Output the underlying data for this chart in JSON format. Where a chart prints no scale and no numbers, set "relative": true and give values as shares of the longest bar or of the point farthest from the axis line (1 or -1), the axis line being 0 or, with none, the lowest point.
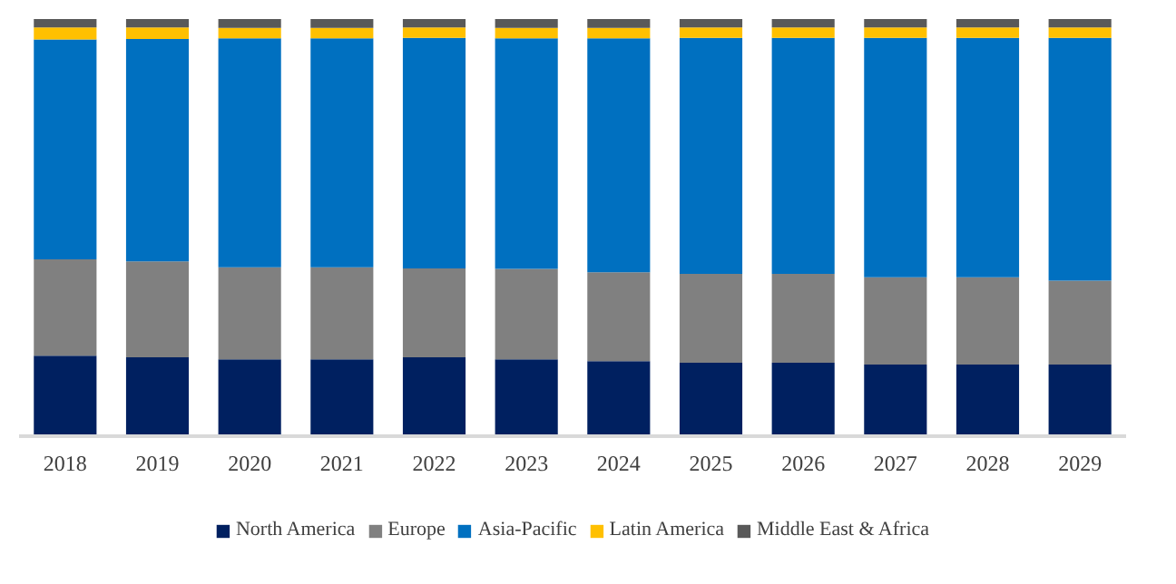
{
  "chart_data": {
    "type": "bar",
    "stacked": true,
    "relative": true,
    "legend": "bottom",
    "grid": false,
    "categories": [
      "2018",
      "2019",
      "2020",
      "2021",
      "2022",
      "2023",
      "2024",
      "2025",
      "2026",
      "2027",
      "2028",
      "2029"
    ],
    "series": [
      {
        "name": "North America",
        "color": "#002060",
        "values": [
          0.193,
          0.189,
          0.184,
          0.184,
          0.189,
          0.184,
          0.18,
          0.176,
          0.176,
          0.172,
          0.172,
          0.172
        ]
      },
      {
        "name": "Europe",
        "color": "#808080",
        "values": [
          0.231,
          0.23,
          0.221,
          0.221,
          0.213,
          0.217,
          0.213,
          0.213,
          0.213,
          0.209,
          0.209,
          0.201
        ]
      },
      {
        "name": "Asia-Pacific",
        "color": "#0070c0",
        "values": [
          0.527,
          0.533,
          0.549,
          0.549,
          0.553,
          0.553,
          0.561,
          0.566,
          0.566,
          0.574,
          0.574,
          0.582
        ]
      },
      {
        "name": "Latin America",
        "color": "#ffc000",
        "values": [
          0.029,
          0.028,
          0.025,
          0.025,
          0.025,
          0.025,
          0.025,
          0.025,
          0.025,
          0.025,
          0.025,
          0.025
        ]
      },
      {
        "name": "Middle East & Africa",
        "color": "#595959",
        "values": [
          0.02,
          0.02,
          0.021,
          0.021,
          0.02,
          0.021,
          0.021,
          0.02,
          0.02,
          0.02,
          0.02,
          0.02
        ]
      }
    ]
  }
}
